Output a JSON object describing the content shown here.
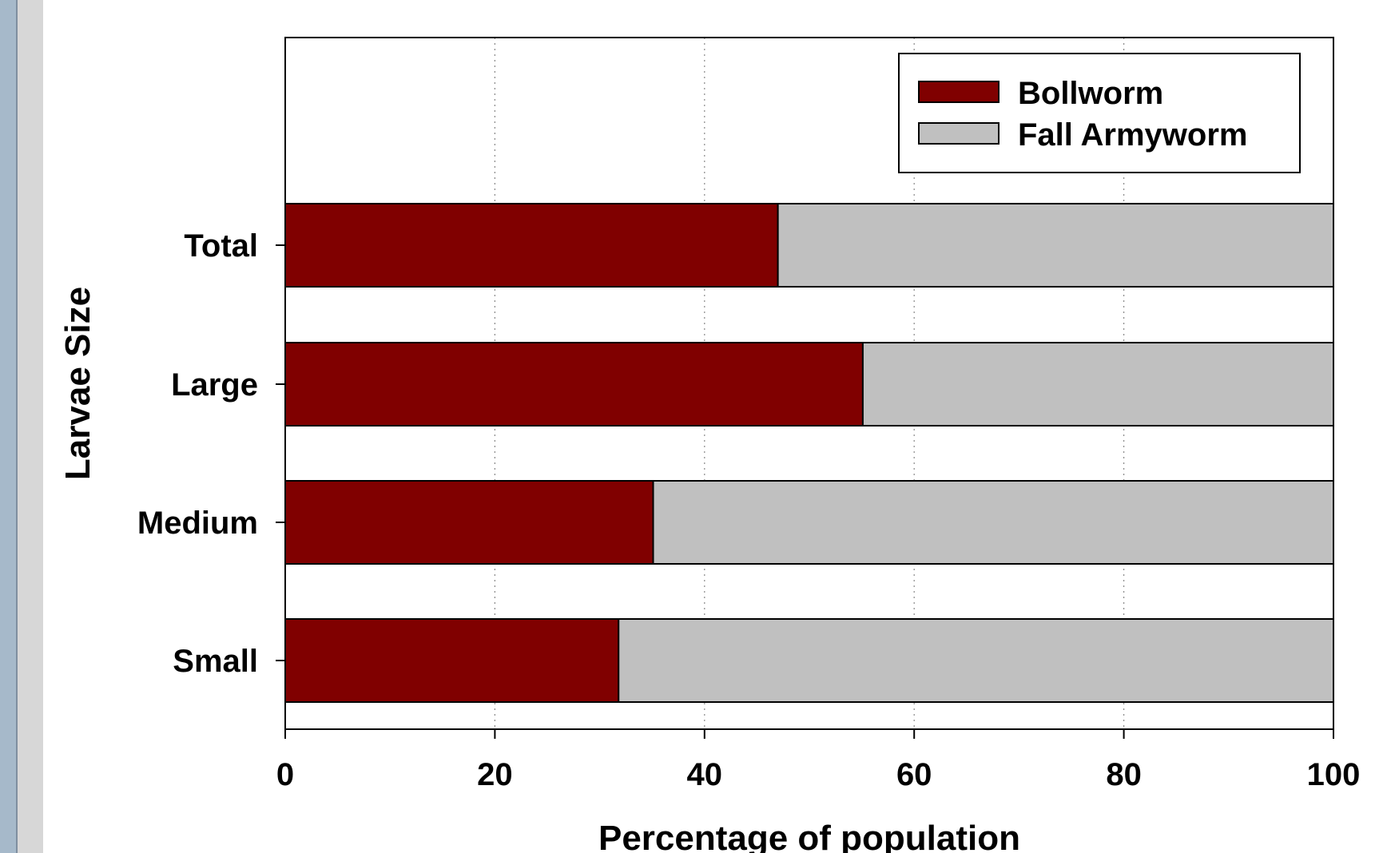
{
  "chart_data": {
    "type": "bar",
    "orientation": "horizontal",
    "stacked": true,
    "categories": [
      "Small",
      "Medium",
      "Large",
      "Total"
    ],
    "series": [
      {
        "name": "Bollworm",
        "values": [
          31.8,
          35.1,
          55.1,
          47.0
        ],
        "color": "#800000"
      },
      {
        "name": "Fall Armyworm",
        "values": [
          68.2,
          64.9,
          44.9,
          53.0
        ],
        "color": "#c0c0c0"
      }
    ],
    "xlabel": "Percentage of population",
    "ylabel": "Larvae Size",
    "xlim": [
      0,
      100
    ],
    "xticks": [
      0,
      20,
      40,
      60,
      80,
      100
    ],
    "xtick_labels": [
      "0",
      "20",
      "40",
      "60",
      "80",
      "100"
    ],
    "grid": "vertical dotted",
    "legend_position": "top-right"
  }
}
